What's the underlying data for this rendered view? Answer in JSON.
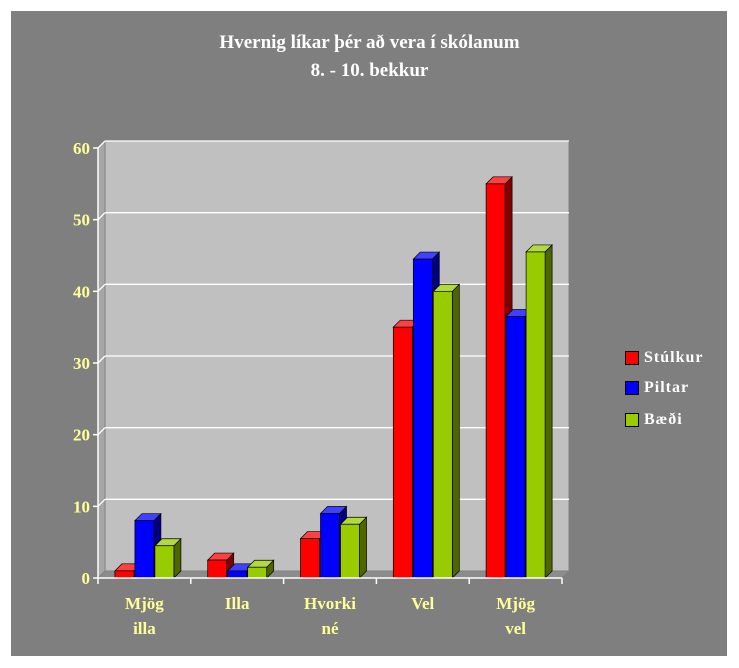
{
  "chart_data": {
    "type": "bar",
    "title": "Hvernig líkar þér að vera í skólanum",
    "subtitle": "8. - 10. bekkur",
    "categories": [
      [
        "Mjög",
        "illa"
      ],
      [
        "Illa"
      ],
      [
        "Hvorki",
        "né"
      ],
      [
        "Vel"
      ],
      [
        "Mjög",
        "vel"
      ]
    ],
    "series": [
      {
        "name": "Stúlkur",
        "color": "#ff0000",
        "values": [
          1,
          2.5,
          5.5,
          35,
          55
        ]
      },
      {
        "name": "Piltar",
        "color": "#0000ff",
        "values": [
          8,
          1,
          9,
          44.5,
          36.5
        ]
      },
      {
        "name": "Bæði",
        "color": "#99cc00",
        "values": [
          4.5,
          1.5,
          7.5,
          40,
          45.5
        ]
      }
    ],
    "yticks": [
      "0",
      "10",
      "20",
      "30",
      "40",
      "50",
      "60"
    ],
    "ylim": [
      0,
      60
    ],
    "grid": true,
    "legend_position": "right",
    "plot_background": "#c0c0c0",
    "frame_background": "#7f7f7f",
    "text_color": "#ffff99"
  }
}
